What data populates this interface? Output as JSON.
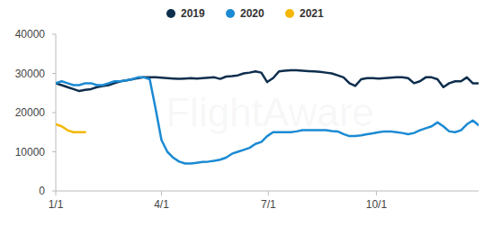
{
  "chart_data": {
    "type": "line",
    "annotations": [
      "FlightAware"
    ],
    "x": [
      0,
      5,
      10,
      15,
      20,
      25,
      30,
      35,
      40,
      45,
      50,
      55,
      60,
      65,
      70,
      75,
      80,
      85,
      90,
      95,
      100,
      105,
      110,
      115,
      120,
      125,
      130,
      135,
      140,
      145,
      150,
      155,
      160,
      165,
      170,
      175,
      180,
      185,
      190,
      195,
      200,
      205,
      210,
      215,
      220,
      225,
      230,
      235,
      240,
      245,
      250,
      255,
      260,
      265,
      270,
      275,
      280,
      285,
      290,
      295,
      300,
      305,
      310,
      315,
      320,
      325,
      330,
      335,
      340,
      345,
      350,
      355,
      360
    ],
    "series": [
      {
        "name": "2019",
        "color": "#0e2e4d",
        "values": [
          27500,
          27000,
          26500,
          26000,
          25500,
          25800,
          26000,
          26500,
          26800,
          27000,
          27500,
          28000,
          28200,
          28500,
          28800,
          29000,
          29000,
          29000,
          28900,
          28800,
          28700,
          28600,
          28700,
          28800,
          28700,
          28800,
          28900,
          29000,
          28600,
          29200,
          29300,
          29500,
          30000,
          30200,
          30500,
          30200,
          27800,
          28800,
          30500,
          30700,
          30800,
          30800,
          30700,
          30600,
          30500,
          30400,
          30200,
          30000,
          29500,
          29000,
          27500,
          26800,
          28500,
          28800,
          28800,
          28700,
          28800,
          28900,
          29000,
          29000,
          28800,
          27500,
          28000,
          29000,
          29000,
          28500,
          26500,
          27500,
          28000,
          28000,
          29000,
          27500,
          27500
        ]
      },
      {
        "name": "2020",
        "color": "#1b8ad3",
        "values": [
          27500,
          28000,
          27500,
          27000,
          27000,
          27500,
          27500,
          27000,
          27000,
          27500,
          28000,
          28000,
          28200,
          28500,
          29000,
          29000,
          28500,
          21000,
          13000,
          10000,
          8500,
          7500,
          7000,
          7000,
          7200,
          7400,
          7500,
          7700,
          8000,
          8500,
          9500,
          10000,
          10500,
          11000,
          12000,
          12500,
          14000,
          15000,
          15000,
          15000,
          15000,
          15200,
          15500,
          15500,
          15500,
          15500,
          15500,
          15300,
          15200,
          14500,
          14000,
          14000,
          14200,
          14500,
          14700,
          15000,
          15200,
          15200,
          15000,
          14800,
          14500,
          14800,
          15500,
          16000,
          16500,
          17500,
          16500,
          15200,
          15000,
          15500,
          17000,
          18000,
          16800
        ]
      },
      {
        "name": "2021",
        "color": "#f5b700",
        "values": [
          17000,
          16500,
          15500,
          15000,
          15000,
          15000,
          null,
          null,
          null,
          null,
          null,
          null,
          null,
          null,
          null,
          null,
          null,
          null,
          null,
          null,
          null,
          null,
          null,
          null,
          null,
          null,
          null,
          null,
          null,
          null,
          null,
          null,
          null,
          null,
          null,
          null,
          null,
          null,
          null,
          null,
          null,
          null,
          null,
          null,
          null,
          null,
          null,
          null,
          null,
          null,
          null,
          null,
          null,
          null,
          null,
          null,
          null,
          null,
          null,
          null,
          null,
          null,
          null,
          null,
          null,
          null,
          null,
          null,
          null,
          null,
          null,
          null,
          null
        ]
      }
    ],
    "xlim": [
      0,
      360
    ],
    "xticks": [
      {
        "value": 0,
        "label": "1/1"
      },
      {
        "value": 90,
        "label": "4/1"
      },
      {
        "value": 181,
        "label": "7/1"
      },
      {
        "value": 273,
        "label": "10/1"
      }
    ],
    "ylim": [
      0,
      40000
    ],
    "yticks": [
      0,
      10000,
      20000,
      30000,
      40000
    ],
    "grid": false,
    "legend": "top"
  }
}
